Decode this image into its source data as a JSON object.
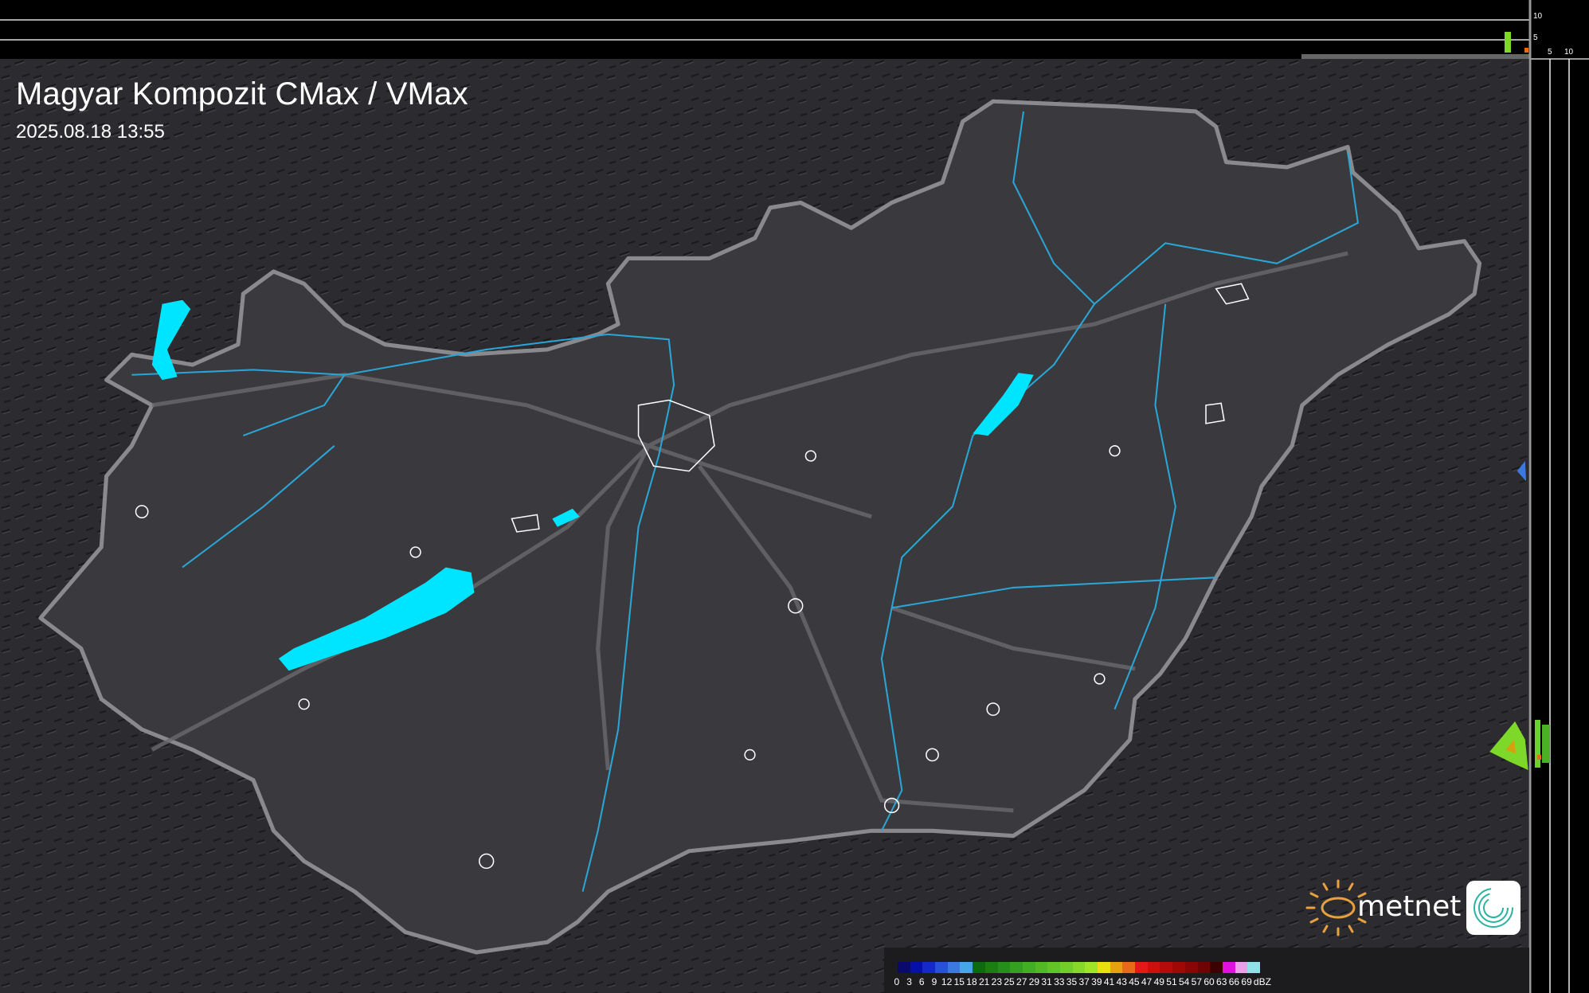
{
  "header": {
    "title": "Magyar Kompozit CMax / VMax",
    "timestamp": "2025.08.18 13:55"
  },
  "side_profile_top": {
    "ticks": [
      "10",
      "5"
    ]
  },
  "side_profile_right": {
    "ticks": [
      "5",
      "10"
    ]
  },
  "legend": {
    "unit": "dBZ",
    "values": [
      "0",
      "3",
      "6",
      "9",
      "12",
      "15",
      "18",
      "21",
      "23",
      "25",
      "27",
      "29",
      "31",
      "33",
      "35",
      "37",
      "39",
      "41",
      "43",
      "45",
      "47",
      "49",
      "51",
      "54",
      "57",
      "60",
      "63",
      "66",
      "69"
    ],
    "colors": [
      "#0a0a6e",
      "#0610a8",
      "#1528c8",
      "#2a4fd8",
      "#3b78e0",
      "#45a6e8",
      "#0e6a10",
      "#1a7e12",
      "#24901a",
      "#34a020",
      "#42ae22",
      "#52b824",
      "#62c226",
      "#74cc28",
      "#88d82a",
      "#a0e42a",
      "#e8e00e",
      "#e8a010",
      "#e86a18",
      "#e41818",
      "#cc1010",
      "#b40c0c",
      "#a00808",
      "#8a0606",
      "#700404",
      "#3a0202",
      "#e010e0",
      "#e8a0e8",
      "#90e0e8"
    ]
  },
  "map": {
    "land_color": "#3a3a3e",
    "lake_color": "#00e5ff",
    "river_color": "#2aa6d6",
    "border_color": "#8a8a8e"
  },
  "branding": {
    "logo_text": "metnet"
  }
}
